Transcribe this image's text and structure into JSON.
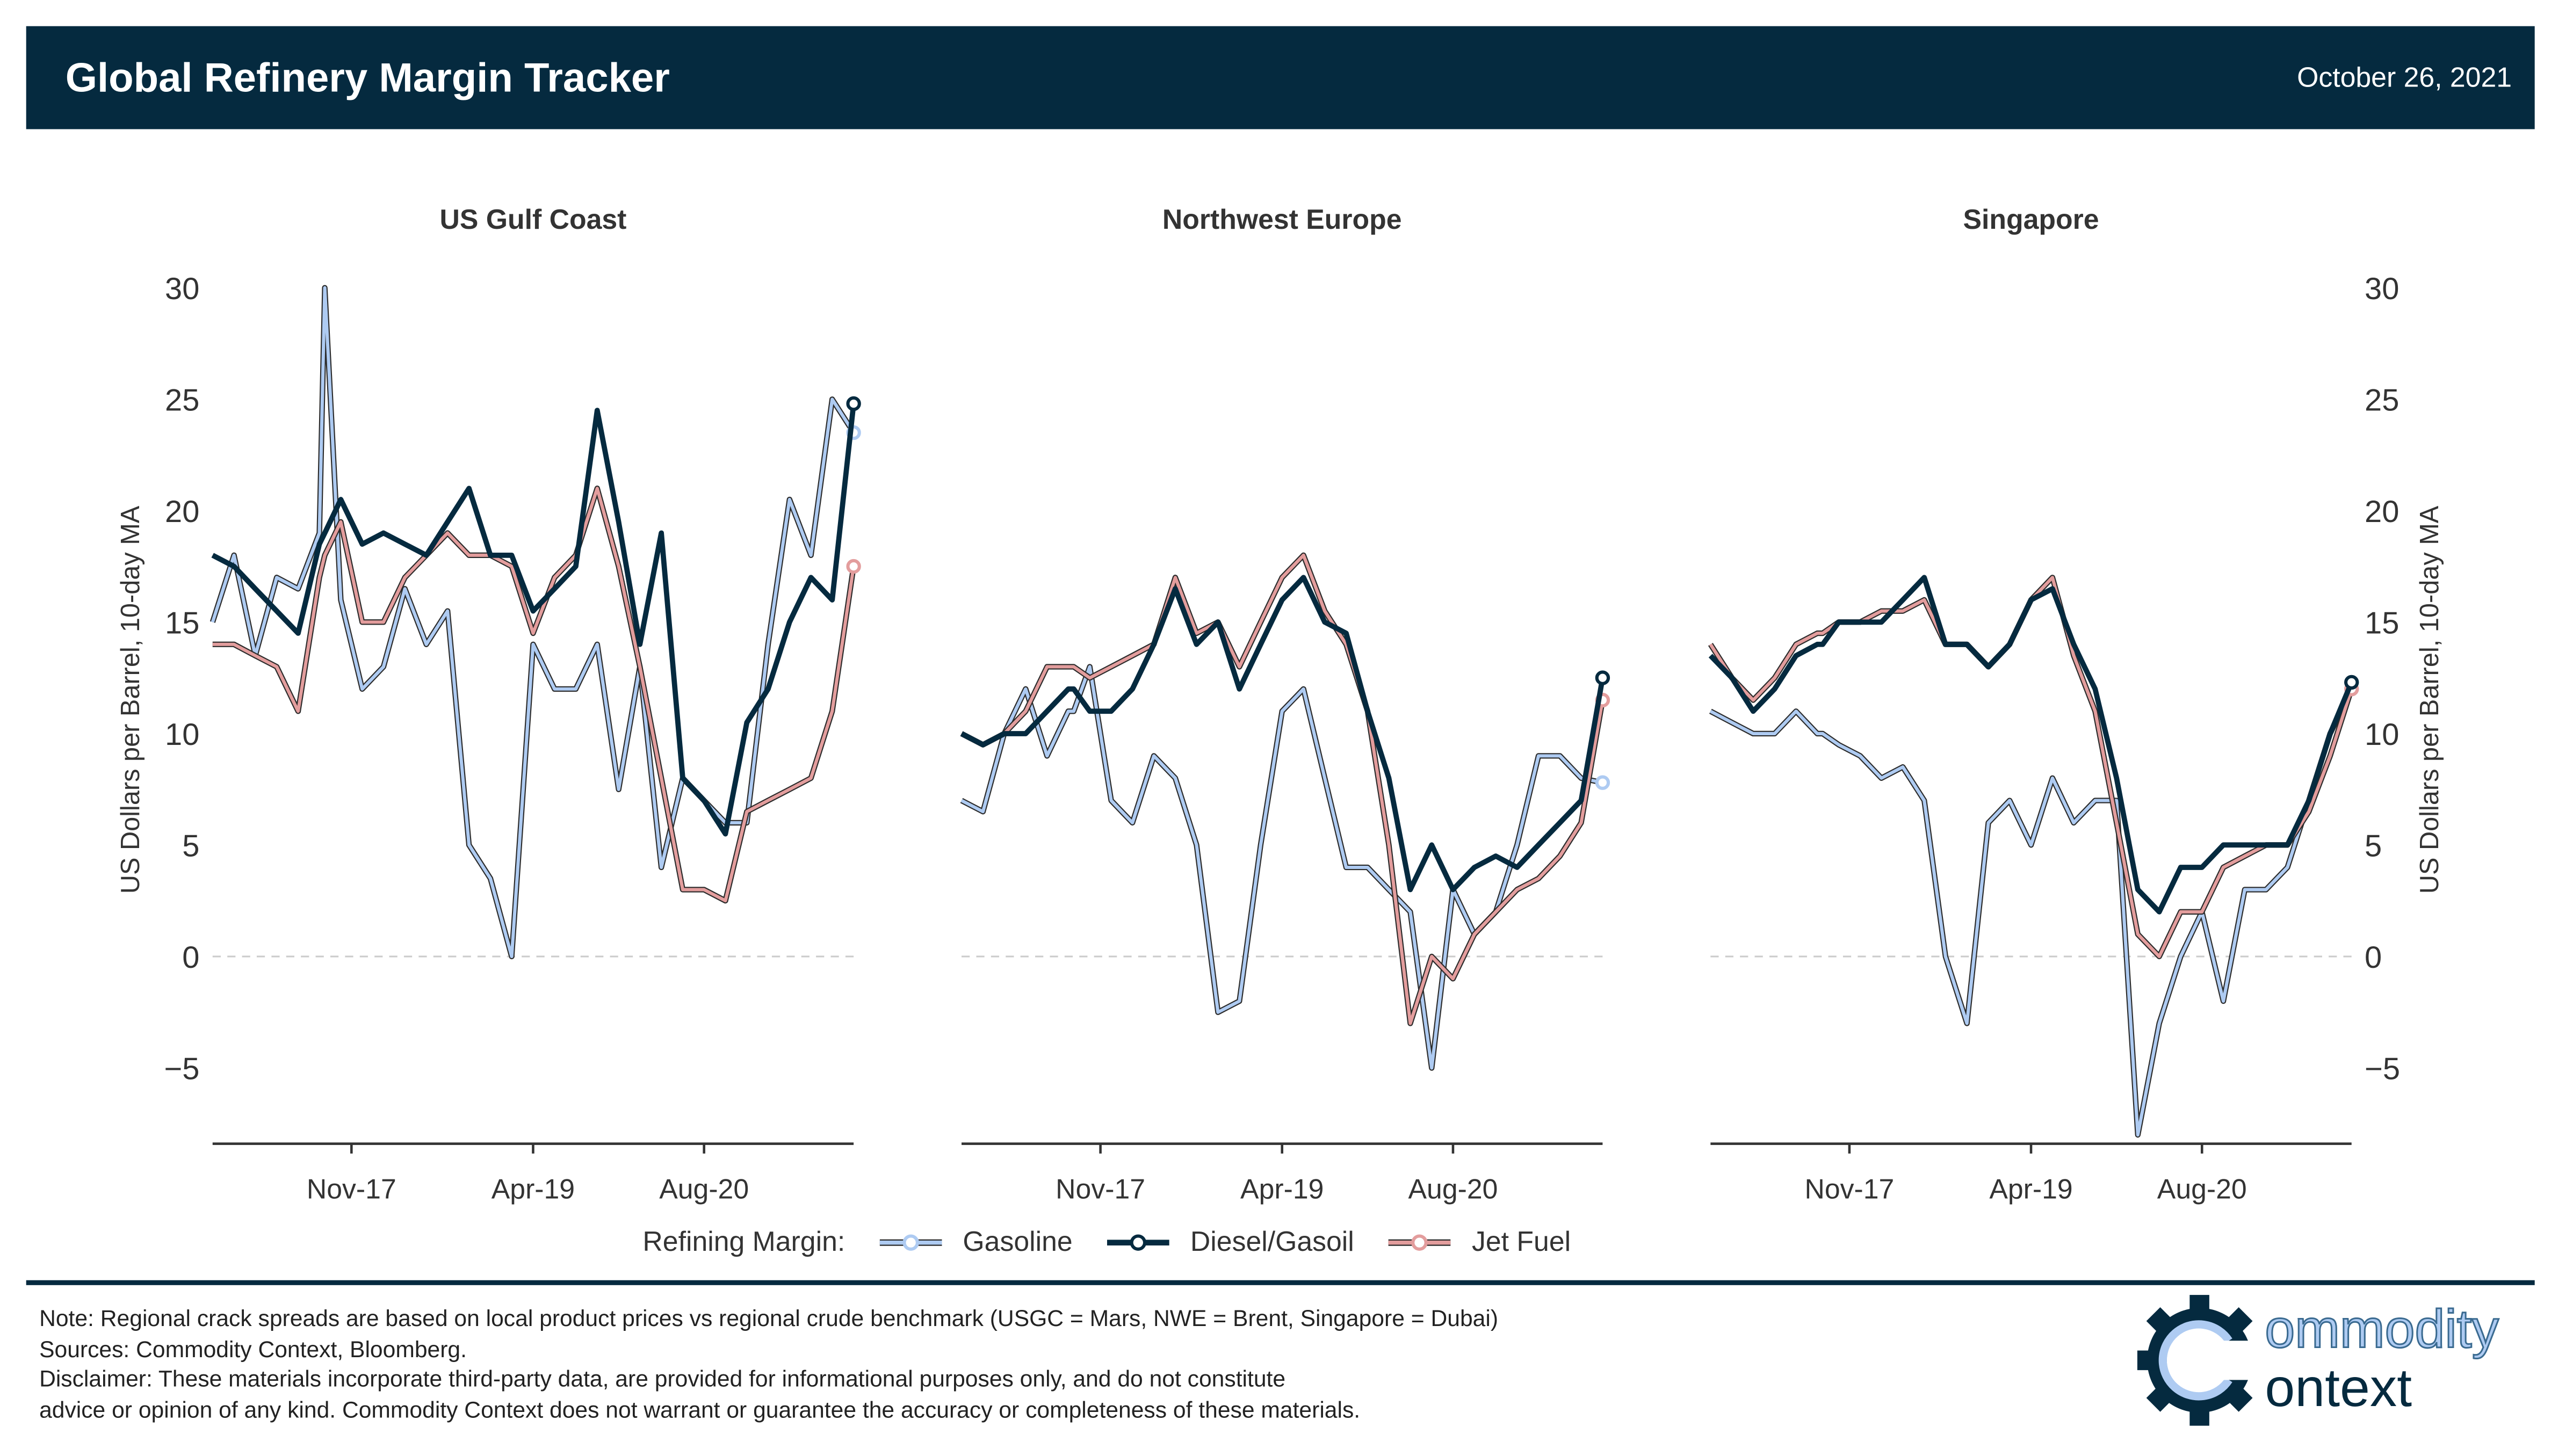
{
  "header": {
    "title": "Global Refinery Margin Tracker",
    "date": "October 26, 2021"
  },
  "legend": {
    "label": "Refining Margin:",
    "items": [
      "Gasoline",
      "Diesel/Gasoil",
      "Jet Fuel"
    ]
  },
  "footer": {
    "note": "Note: Regional crack spreads are based on local product prices vs regional crude benchmark (USGC = Mars, NWE = Brent, Singapore = Dubai)",
    "sources": "Sources: Commodity Context, Bloomberg.",
    "disclaimer1": "Disclaimer: These materials incorporate third-party data, are provided for informational purposes only, and do not constitute",
    "disclaimer2": "advice or opinion of any kind. Commodity Context does not warrant or guarantee the accuracy or completeness of these materials.",
    "logo_text": "Commodity Context"
  },
  "colors": {
    "gasoline": "#aecbf2",
    "diesel": "#052a3f",
    "jet": "#e39d9d",
    "outline": "#2b2b2b",
    "header": "#052a3f"
  },
  "chart_data": {
    "type": "line",
    "ylabel": "US Dollars per Barrel, 10-day MA",
    "ylim": [
      -8.4,
      31
    ],
    "yticks": [
      -5,
      0,
      5,
      10,
      15,
      20,
      25,
      30
    ],
    "ytick_labels": [
      "−5",
      "0",
      "5",
      "10",
      "15",
      "20",
      "25",
      "30"
    ],
    "x_unit": "months since Oct-2016",
    "xlim": [
      0,
      60
    ],
    "xticks": [
      13,
      30,
      46
    ],
    "xtick_labels": [
      "Nov-17",
      "Apr-19",
      "Aug-20"
    ],
    "x": [
      0,
      2,
      4,
      6,
      8,
      10,
      10.5,
      12,
      14,
      16,
      18,
      20,
      22,
      24,
      26,
      28,
      30,
      32,
      34,
      36,
      38,
      40,
      42,
      44,
      46,
      48,
      50,
      52,
      54,
      56,
      58,
      60
    ],
    "panels": [
      {
        "title": "US Gulf Coast",
        "series": [
          {
            "name": "Gasoline",
            "values": [
              15,
              18,
              13.5,
              17,
              16.5,
              19,
              30,
              16,
              12,
              13,
              16.5,
              14,
              15.5,
              5,
              3.5,
              0,
              14,
              12,
              12,
              14,
              7.5,
              13,
              4,
              8,
              7,
              6,
              6,
              14,
              20.5,
              18,
              25,
              23.5
            ]
          },
          {
            "name": "Diesel/Gasoil",
            "values": [
              18,
              17.5,
              16.5,
              15.5,
              14.5,
              18.5,
              19,
              20.5,
              18.5,
              19,
              18.5,
              18,
              19.5,
              21,
              18,
              18,
              15.5,
              16.5,
              17.5,
              24.5,
              19.5,
              14,
              19,
              8,
              7,
              5.5,
              10.5,
              12,
              15,
              17,
              16,
              24.8
            ]
          },
          {
            "name": "Jet Fuel",
            "values": [
              14,
              14,
              13.5,
              13,
              11,
              17,
              18,
              19.5,
              15,
              15,
              17,
              18,
              19,
              18,
              18,
              17.5,
              14.5,
              17,
              18,
              21,
              17.5,
              13,
              8,
              3,
              3,
              2.5,
              6.5,
              7,
              7.5,
              8,
              11,
              17.5
            ]
          }
        ]
      },
      {
        "title": "Northwest Europe",
        "series": [
          {
            "name": "Gasoline",
            "values": [
              7,
              6.5,
              10,
              12,
              9,
              11,
              11,
              13,
              7,
              6,
              9,
              8,
              5,
              -2.5,
              -2,
              5,
              11,
              12,
              8,
              4,
              4,
              3,
              2,
              -5,
              3,
              1,
              2,
              5,
              9,
              9,
              8,
              7.8
            ]
          },
          {
            "name": "Diesel/Gasoil",
            "values": [
              10,
              9.5,
              10,
              10,
              11,
              12,
              12,
              11,
              11,
              12,
              14,
              16.5,
              14,
              15,
              12,
              14,
              16,
              17,
              15,
              14.5,
              11,
              8,
              3,
              5,
              3,
              4,
              4.5,
              4,
              5,
              6,
              7,
              12.5
            ]
          },
          {
            "name": "Jet Fuel",
            "values": [
              10,
              9.5,
              10,
              11,
              13,
              13,
              13,
              12.5,
              13,
              13.5,
              14,
              17,
              14.5,
              15,
              13,
              15,
              17,
              18,
              15.5,
              14,
              11,
              5,
              -3,
              0,
              -1,
              1,
              2,
              3,
              3.5,
              4.5,
              6,
              11.5
            ]
          }
        ]
      },
      {
        "title": "Singapore",
        "series": [
          {
            "name": "Gasoline",
            "values": [
              11,
              10.5,
              10,
              10,
              11,
              10,
              10,
              9.5,
              9,
              8,
              8.5,
              7,
              0,
              -3,
              6,
              7,
              5,
              8,
              6,
              7,
              7,
              -8,
              -3,
              0,
              2,
              -2,
              3,
              3,
              4,
              7,
              10,
              12
            ]
          },
          {
            "name": "Diesel/Gasoil",
            "values": [
              13.5,
              12.5,
              11,
              12,
              13.5,
              14,
              14,
              15,
              15,
              15,
              16,
              17,
              14,
              14,
              13,
              14,
              16,
              16.5,
              14,
              12,
              8,
              3,
              2,
              4,
              4,
              5,
              5,
              5,
              5,
              7,
              10,
              12.3
            ]
          },
          {
            "name": "Jet Fuel",
            "values": [
              14,
              12.5,
              11.5,
              12.5,
              14,
              14.5,
              14.5,
              15,
              15,
              15.5,
              15.5,
              16,
              14,
              14,
              13,
              14,
              16,
              17,
              13.5,
              11,
              6,
              1,
              0,
              2,
              2,
              4,
              4.5,
              5,
              5,
              6.5,
              9,
              12
            ]
          }
        ]
      }
    ]
  }
}
